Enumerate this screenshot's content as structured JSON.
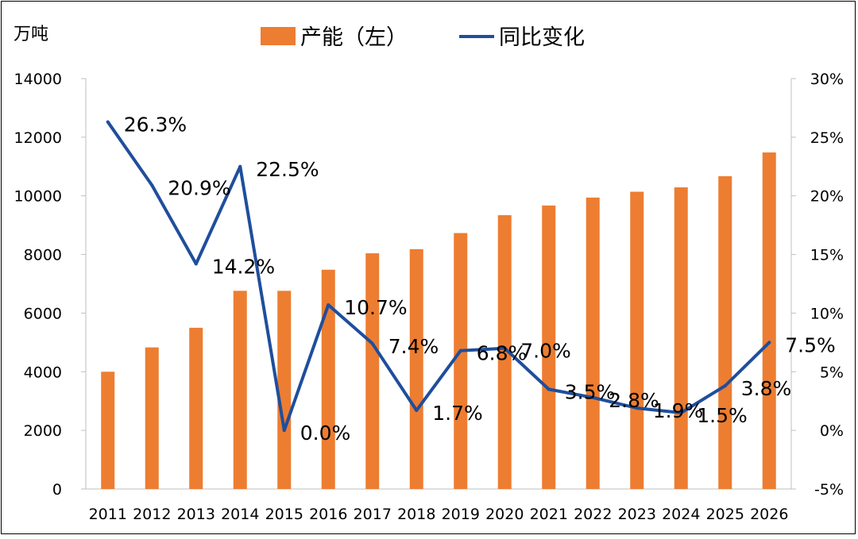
{
  "chart_data": {
    "type": "bar+line",
    "unit_left": "万吨",
    "categories": [
      "2011",
      "2012",
      "2013",
      "2014",
      "2015",
      "2016",
      "2017",
      "2018",
      "2019",
      "2020",
      "2021",
      "2022",
      "2023",
      "2024",
      "2025",
      "2026"
    ],
    "series": [
      {
        "name": "产能（左）",
        "type": "bar",
        "axis": "left",
        "color": "#ED7D31",
        "values": [
          4000,
          4830,
          5500,
          6760,
          6760,
          7480,
          8040,
          8180,
          8730,
          9340,
          9670,
          9940,
          10140,
          10290,
          10670,
          11480
        ]
      },
      {
        "name": "同比变化",
        "type": "line",
        "axis": "right",
        "color": "#1F4E9C",
        "values": [
          26.3,
          20.9,
          14.2,
          22.5,
          0.0,
          10.7,
          7.4,
          1.7,
          6.8,
          7.0,
          3.5,
          2.8,
          1.9,
          1.5,
          3.8,
          7.5
        ],
        "labels": [
          "26.3%",
          "20.9%",
          "14.2%",
          "22.5%",
          "0.0%",
          "10.7%",
          "7.4%",
          "1.7%",
          "6.8%",
          "7.0%",
          "3.5%",
          "2.8%",
          "1.9%",
          "1.5%",
          "3.8%",
          "7.5%"
        ]
      }
    ],
    "y_left": {
      "min": 0,
      "max": 14000,
      "ticks": [
        "0",
        "2000",
        "4000",
        "6000",
        "8000",
        "10000",
        "12000",
        "14000"
      ]
    },
    "y_right": {
      "min": -5,
      "max": 30,
      "ticks": [
        "-5%",
        "0%",
        "5%",
        "10%",
        "15%",
        "20%",
        "25%",
        "30%"
      ]
    },
    "legend": "top-center",
    "grid": false
  }
}
